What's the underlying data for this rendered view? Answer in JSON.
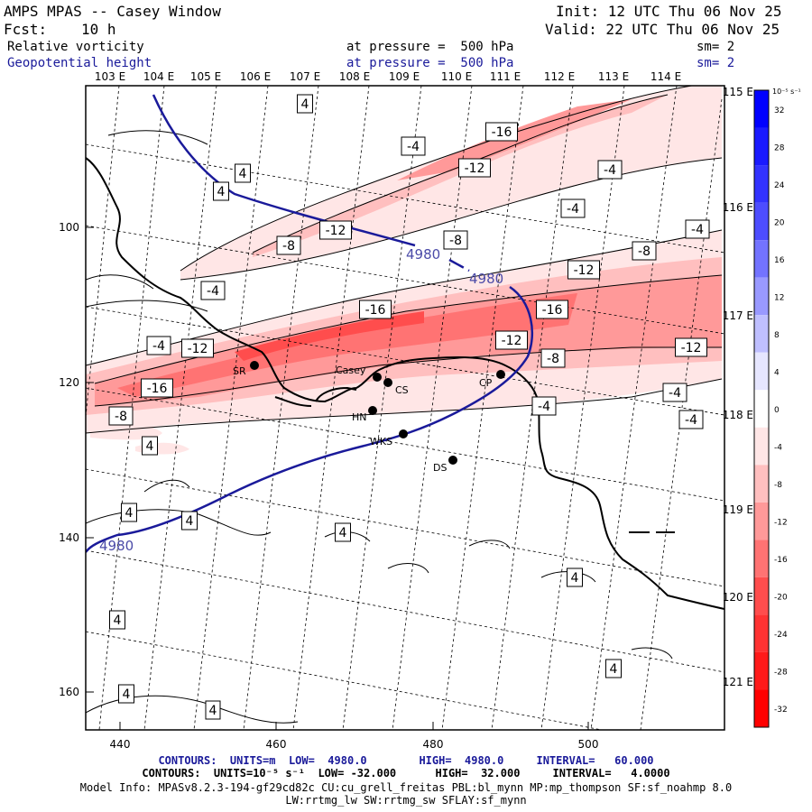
{
  "header": {
    "title": "AMPS MPAS -- Casey Window",
    "init": "Init: 12 UTC Thu 06 Nov 25",
    "forecast_label": "Fcst:",
    "forecast_value": "10 h",
    "valid": "Valid: 22 UTC Thu 06 Nov 25",
    "field1_name": "Relative vorticity",
    "field1_level": "at pressure =  500 hPa",
    "field1_sm": "sm= 2",
    "field2_name": "Geopotential height",
    "field2_level": "at pressure =  500 hPa",
    "field2_sm": "sm= 2"
  },
  "top_longitudes": [
    "103 E",
    "104 E",
    "105 E",
    "106 E",
    "107 E",
    "108 E",
    "109 E",
    "110 E",
    "111 E",
    "112 E",
    "113 E",
    "114 E"
  ],
  "right_longitudes": [
    "115 E",
    "116 E",
    "117 E",
    "118 E",
    "119 E",
    "120 E",
    "121 E"
  ],
  "x_ticks": [
    "440",
    "460",
    "480",
    "500"
  ],
  "y_ticks": [
    "100",
    "120",
    "140",
    "160"
  ],
  "colorbar": {
    "unit": "10⁻⁵ s⁻¹",
    "labels": [
      "32",
      "28",
      "24",
      "20",
      "16",
      "12",
      "8",
      "4",
      "0",
      "-4",
      "-8",
      "-12",
      "-16",
      "-20",
      "-24",
      "-28",
      "-32"
    ],
    "colors": [
      "#0000ff",
      "#1a1aff",
      "#3333ff",
      "#4d4dff",
      "#7373ff",
      "#9999ff",
      "#bfbfff",
      "#e6e6ff",
      "#ffffff",
      "#ffe6e6",
      "#ffbfbf",
      "#ff9999",
      "#ff7373",
      "#ff4d4d",
      "#ff3333",
      "#ff1a1a",
      "#ff0000"
    ]
  },
  "stations": [
    {
      "name": "SR"
    },
    {
      "name": "Casey"
    },
    {
      "name": "CS"
    },
    {
      "name": "CP"
    },
    {
      "name": "HN"
    },
    {
      "name": "WKS"
    },
    {
      "name": "DS"
    }
  ],
  "vort_labels": [
    "4",
    "4",
    "4",
    "4",
    "-4",
    "-16",
    "-12",
    "-4",
    "-4",
    "-12",
    "-8",
    "-8",
    "-8",
    "-12",
    "-4",
    "-4",
    "-16",
    "-16",
    "-12",
    "-8",
    "-4",
    "-12",
    "-12",
    "-16",
    "-8",
    "-4",
    "-4",
    "-4",
    "4",
    "4",
    "4",
    "4",
    "4",
    "4",
    "4"
  ],
  "height_labels": [
    "4980",
    "4980",
    "4980"
  ],
  "footer": {
    "line1": "CONTOURS:  UNITS=m  LOW=  4980.0        HIGH=  4980.0     INTERVAL=   60.000",
    "line2": "CONTOURS:  UNITS=10⁻⁵ s⁻¹  LOW= -32.000      HIGH=  32.000     INTERVAL=   4.0000",
    "line3": "Model Info: MPASv8.2.3-194-gf29cd82c CU:cu_grell_freitas PBL:bl_mynn MP:mp_thompson SF:sf_noahmp 8.0",
    "line4": "LW:rrtmg_lw SW:rrtmg_sw SFLAY:sf_mynn"
  }
}
